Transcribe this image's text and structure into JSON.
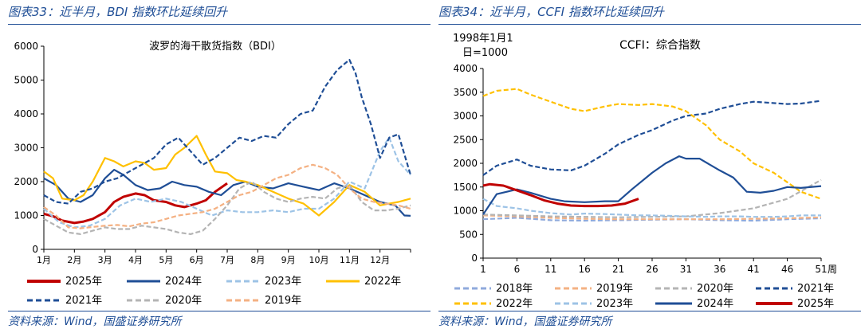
{
  "panels": {
    "left": {
      "title": "图表33：近半月，BDI 指数环比延续回升",
      "source": "资料来源：Wind，国盛证券研究所"
    },
    "right": {
      "title": "图表34：近半月，CCFI 指数环比延续回升",
      "source": "资料来源：Wind，国盛证券研究所"
    }
  },
  "colors": {
    "2025年": "#c00000",
    "2024年": "#1f4e96",
    "2023年": "#9dc3e6",
    "2022年": "#ffc000",
    "2021年": "#1f4e96",
    "2020年": "#b4b4b4",
    "2019年": "#f4b183",
    "2018年": "#8faadc",
    "accent": "#1f4e96"
  },
  "chart_data": [
    {
      "type": "line",
      "title": "波罗的海干散货指数（BDI）",
      "xlabel": "",
      "ylabel": "",
      "x_unit": "month",
      "xlim": [
        0,
        12
      ],
      "ylim": [
        0,
        6000
      ],
      "yticks": [
        0,
        1000,
        2000,
        3000,
        4000,
        5000,
        6000
      ],
      "xtick_labels": [
        "1月",
        "2月",
        "3月",
        "4月",
        "5月",
        "6月",
        "7月",
        "8月",
        "9月",
        "10月",
        "11月",
        "12月"
      ],
      "grid": false,
      "legend_position": "bottom",
      "series": [
        {
          "name": "2025年",
          "style": "solid",
          "x": [
            0,
            0.3,
            0.6,
            1,
            1.3,
            1.6,
            2,
            2.3,
            2.6,
            3,
            3.3,
            3.6,
            4,
            4.3,
            4.6,
            5,
            5.3,
            5.6,
            6
          ],
          "y": [
            1050,
            980,
            850,
            780,
            820,
            900,
            1100,
            1400,
            1550,
            1650,
            1600,
            1450,
            1400,
            1300,
            1250,
            1350,
            1450,
            1700,
            1950
          ]
        },
        {
          "name": "2024年",
          "style": "solid",
          "x": [
            0,
            0.4,
            0.8,
            1.2,
            1.6,
            2,
            2.3,
            2.6,
            3,
            3.4,
            3.8,
            4.2,
            4.6,
            5,
            5.4,
            5.8,
            6.2,
            6.6,
            7,
            7.5,
            8,
            8.5,
            9,
            9.5,
            10,
            10.5,
            11,
            11.5,
            11.8,
            12
          ],
          "y": [
            2100,
            1900,
            1500,
            1400,
            1600,
            2100,
            2350,
            2200,
            1900,
            1750,
            1800,
            2000,
            1900,
            1850,
            1700,
            1600,
            1900,
            2000,
            1850,
            1800,
            1950,
            1850,
            1750,
            1950,
            1800,
            1600,
            1400,
            1300,
            1000,
            990
          ]
        },
        {
          "name": "2023年",
          "style": "dashed",
          "x": [
            0,
            0.5,
            1,
            1.5,
            2,
            2.5,
            3,
            3.5,
            4,
            4.5,
            5,
            5.5,
            6,
            6.5,
            7,
            7.5,
            8,
            8.5,
            9,
            9.5,
            10,
            10.5,
            11,
            11.3,
            11.6,
            12
          ],
          "y": [
            1200,
            800,
            650,
            700,
            900,
            1300,
            1500,
            1400,
            1500,
            1400,
            1200,
            1000,
            1150,
            1100,
            1100,
            1150,
            1100,
            1200,
            1200,
            1500,
            2000,
            1800,
            2900,
            3300,
            2600,
            2200
          ]
        },
        {
          "name": "2022年",
          "style": "solid",
          "x": [
            0,
            0.3,
            0.6,
            1,
            1.3,
            1.6,
            2,
            2.3,
            2.6,
            3,
            3.3,
            3.6,
            4,
            4.3,
            4.6,
            5,
            5.3,
            5.6,
            6,
            6.3,
            6.6,
            7,
            7.5,
            8,
            8.5,
            9,
            9.5,
            10,
            10.5,
            11,
            11.3,
            11.6,
            12
          ],
          "y": [
            2300,
            2100,
            1500,
            1450,
            1600,
            2000,
            2700,
            2600,
            2450,
            2600,
            2550,
            2350,
            2400,
            2800,
            3000,
            3350,
            2800,
            2300,
            2250,
            2050,
            2000,
            1900,
            1700,
            1500,
            1350,
            1000,
            1400,
            1900,
            1700,
            1300,
            1350,
            1400,
            1500
          ]
        },
        {
          "name": "2021年",
          "style": "dashed",
          "x": [
            0,
            0.4,
            0.8,
            1.2,
            1.6,
            2,
            2.4,
            2.8,
            3.2,
            3.6,
            4,
            4.4,
            4.8,
            5.2,
            5.6,
            6,
            6.4,
            6.8,
            7.2,
            7.6,
            8,
            8.4,
            8.8,
            9.2,
            9.6,
            10,
            10.2,
            10.4,
            10.7,
            11,
            11.3,
            11.6,
            12
          ],
          "y": [
            1600,
            1400,
            1350,
            1700,
            1800,
            2000,
            2100,
            2300,
            2500,
            2700,
            3100,
            3300,
            2900,
            2500,
            2700,
            3000,
            3300,
            3200,
            3350,
            3300,
            3700,
            4000,
            4100,
            4800,
            5300,
            5600,
            5200,
            4500,
            3700,
            2700,
            3300,
            3400,
            2200
          ]
        },
        {
          "name": "2020年",
          "style": "dashed",
          "x": [
            0,
            0.4,
            0.8,
            1.2,
            1.6,
            2,
            2.4,
            2.8,
            3.2,
            3.6,
            4,
            4.4,
            4.8,
            5.2,
            5.6,
            6,
            6.4,
            6.8,
            7.2,
            7.6,
            8,
            8.4,
            8.8,
            9.2,
            9.6,
            10,
            10.4,
            10.8,
            11.2,
            11.6,
            12
          ],
          "y": [
            900,
            700,
            500,
            450,
            550,
            650,
            600,
            600,
            700,
            650,
            600,
            500,
            450,
            550,
            900,
            1300,
            1800,
            2000,
            1700,
            1500,
            1400,
            1500,
            1550,
            1500,
            1800,
            1900,
            1400,
            1150,
            1150,
            1200,
            1300
          ]
        },
        {
          "name": "2019年",
          "style": "dashed",
          "x": [
            0,
            0.4,
            0.8,
            1.2,
            1.6,
            2,
            2.4,
            2.8,
            3.2,
            3.6,
            4,
            4.4,
            4.8,
            5.2,
            5.6,
            6,
            6.4,
            6.8,
            7.2,
            7.6,
            8,
            8.4,
            8.8,
            9.2,
            9.6,
            10,
            10.4,
            10.8,
            11.2,
            11.6,
            12
          ],
          "y": [
            1250,
            1000,
            650,
            620,
            660,
            700,
            720,
            680,
            760,
            800,
            900,
            1000,
            1050,
            1100,
            1200,
            1400,
            1600,
            1700,
            1900,
            2100,
            2200,
            2400,
            2500,
            2400,
            2200,
            1800,
            1500,
            1400,
            1350,
            1300,
            1200
          ]
        }
      ]
    },
    {
      "type": "line",
      "title": "CCFI：综合指数",
      "base_note_line1": "1998年1月1",
      "base_note_line2": "日=1000",
      "xlabel": "周",
      "ylabel": "",
      "xlim": [
        1,
        51
      ],
      "ylim": [
        0,
        4000
      ],
      "yticks": [
        0,
        500,
        1000,
        1500,
        2000,
        2500,
        3000,
        3500,
        4000
      ],
      "xticks": [
        1,
        6,
        11,
        16,
        21,
        26,
        31,
        36,
        41,
        46,
        51
      ],
      "grid": false,
      "legend_position": "bottom",
      "series": [
        {
          "name": "2018年",
          "style": "dashed",
          "x": [
            1,
            6,
            11,
            16,
            21,
            26,
            31,
            36,
            41,
            46,
            51
          ],
          "y": [
            820,
            850,
            800,
            790,
            800,
            810,
            820,
            800,
            790,
            820,
            840
          ]
        },
        {
          "name": "2019年",
          "style": "dashed",
          "x": [
            1,
            6,
            11,
            16,
            21,
            26,
            31,
            36,
            41,
            46,
            51
          ],
          "y": [
            900,
            880,
            850,
            830,
            820,
            820,
            820,
            820,
            830,
            840,
            860
          ]
        },
        {
          "name": "2020年",
          "style": "dashed",
          "x": [
            1,
            6,
            11,
            16,
            21,
            26,
            31,
            36,
            41,
            46,
            51
          ],
          "y": [
            920,
            900,
            880,
            870,
            860,
            870,
            880,
            950,
            1050,
            1250,
            1650
          ]
        },
        {
          "name": "2021年",
          "style": "dashed",
          "x": [
            1,
            3,
            6,
            8,
            11,
            14,
            16,
            19,
            21,
            24,
            26,
            29,
            31,
            34,
            36,
            39,
            41,
            43,
            46,
            48,
            51
          ],
          "y": [
            1750,
            1950,
            2080,
            1950,
            1870,
            1850,
            1950,
            2200,
            2400,
            2600,
            2700,
            2900,
            3000,
            3050,
            3150,
            3250,
            3300,
            3280,
            3250,
            3260,
            3320
          ]
        },
        {
          "name": "2022年",
          "style": "dashed",
          "x": [
            1,
            3,
            6,
            8,
            11,
            14,
            16,
            19,
            21,
            24,
            26,
            29,
            31,
            34,
            36,
            39,
            41,
            44,
            46,
            48,
            51
          ],
          "y": [
            3420,
            3530,
            3570,
            3450,
            3300,
            3150,
            3100,
            3200,
            3250,
            3230,
            3250,
            3200,
            3100,
            2800,
            2500,
            2250,
            2000,
            1800,
            1600,
            1400,
            1250
          ]
        },
        {
          "name": "2023年",
          "style": "dashed",
          "x": [
            1,
            3,
            6,
            8,
            11,
            14,
            16,
            19,
            21,
            24,
            26,
            29,
            31,
            34,
            36,
            39,
            41,
            44,
            46,
            48,
            51
          ],
          "y": [
            1250,
            1100,
            1050,
            1000,
            950,
            920,
            940,
            930,
            920,
            900,
            900,
            890,
            880,
            870,
            880,
            880,
            870,
            870,
            880,
            900,
            900
          ]
        },
        {
          "name": "2024年",
          "style": "solid",
          "x": [
            1,
            3,
            6,
            8,
            11,
            13,
            16,
            19,
            21,
            23,
            26,
            28,
            30,
            31,
            33,
            36,
            38,
            40,
            42,
            44,
            46,
            48,
            51
          ],
          "y": [
            920,
            1350,
            1450,
            1380,
            1250,
            1200,
            1180,
            1200,
            1200,
            1450,
            1800,
            2000,
            2150,
            2100,
            2100,
            1850,
            1700,
            1400,
            1380,
            1420,
            1500,
            1480,
            1520
          ]
        },
        {
          "name": "2025年",
          "style": "solid",
          "x": [
            1,
            2,
            4,
            6,
            8,
            10,
            12,
            14,
            16,
            18,
            20,
            22,
            24
          ],
          "y": [
            1530,
            1560,
            1530,
            1430,
            1330,
            1220,
            1150,
            1110,
            1100,
            1100,
            1110,
            1150,
            1250
          ]
        }
      ]
    }
  ]
}
